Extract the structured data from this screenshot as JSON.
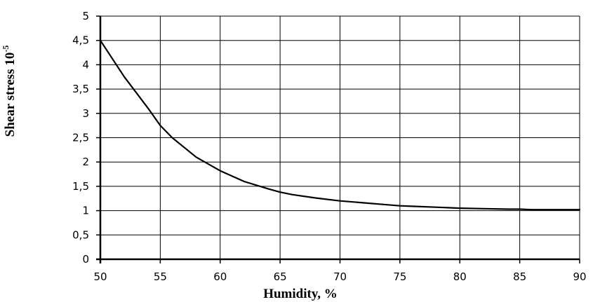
{
  "chart_data": {
    "type": "line",
    "title": "",
    "xlabel": "Humidity, %",
    "ylabel": "Shear stress 10",
    "ylabel_superscript": "-5",
    "xlim": [
      50,
      90
    ],
    "ylim": [
      0,
      5
    ],
    "x_ticks": [
      50,
      55,
      60,
      65,
      70,
      75,
      80,
      85,
      90
    ],
    "x_tick_labels": [
      "50",
      "55",
      "60",
      "65",
      "70",
      "75",
      "80",
      "85",
      "90"
    ],
    "y_ticks": [
      0,
      0.5,
      1,
      1.5,
      2,
      2.5,
      3,
      3.5,
      4,
      4.5,
      5
    ],
    "y_tick_labels": [
      "0",
      "0,5",
      "1",
      "1,5",
      "2",
      "2,5",
      "3",
      "3,5",
      "4",
      "4,5",
      "5"
    ],
    "grid": true,
    "legend": "none",
    "series": [
      {
        "color": "#000000",
        "x": [
          50,
          52,
          54,
          55,
          56,
          58,
          60,
          62,
          64,
          65,
          66,
          68,
          70,
          72,
          74,
          75,
          76,
          78,
          80,
          82,
          84,
          85,
          86,
          88,
          90
        ],
        "y": [
          4.5,
          3.75,
          3.1,
          2.75,
          2.5,
          2.1,
          1.82,
          1.6,
          1.45,
          1.38,
          1.33,
          1.26,
          1.2,
          1.16,
          1.12,
          1.1,
          1.09,
          1.07,
          1.05,
          1.04,
          1.03,
          1.03,
          1.02,
          1.02,
          1.02
        ]
      }
    ]
  }
}
